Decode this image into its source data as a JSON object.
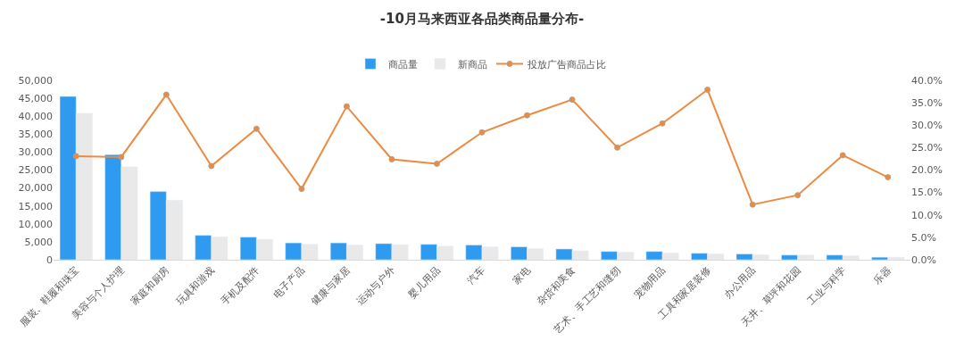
{
  "chart_data": {
    "type": "bar",
    "title": "-10月马来西亚各品类商品量分布-",
    "categories": [
      "服装、鞋履和珠宝",
      "美容与个人护理",
      "家庭和厨房",
      "玩具和游戏",
      "手机及配件",
      "电子产品",
      "健康与家居",
      "运动与户外",
      "婴儿用品",
      "汽车",
      "家电",
      "杂货和美食",
      "艺术、手工艺和缝纫",
      "宠物用品",
      "工具和家居装修",
      "办公用品",
      "天井、草坪和花园",
      "工业与科学",
      "乐器"
    ],
    "series": [
      {
        "name": "商品量",
        "color": "#2e9bf0",
        "values": [
          45500,
          29300,
          19000,
          6800,
          6300,
          4700,
          4700,
          4500,
          4300,
          4100,
          3600,
          3000,
          2300,
          2300,
          1800,
          1600,
          1300,
          1300,
          700
        ]
      },
      {
        "name": "新商品",
        "color": "#e9e9e9",
        "values": [
          40800,
          25900,
          16600,
          6400,
          5700,
          4300,
          4100,
          4200,
          3800,
          3600,
          3100,
          2500,
          2100,
          1900,
          1600,
          1400,
          1300,
          1100,
          700
        ]
      },
      {
        "name": "投放广告商品占比",
        "type": "line",
        "axis": "y2",
        "color": "#ed8a3f",
        "values": [
          23.1,
          22.9,
          36.8,
          20.9,
          29.2,
          15.8,
          34.2,
          22.4,
          21.4,
          28.4,
          32.2,
          35.7,
          25.0,
          30.4,
          37.9,
          12.3,
          14.4,
          23.3,
          18.4
        ]
      }
    ],
    "ylim": [
      0,
      50000
    ],
    "yticks": [
      {
        "value": 0,
        "label": "0"
      },
      {
        "value": 5000,
        "label": "5,000"
      },
      {
        "value": 10000,
        "label": "10,000"
      },
      {
        "value": 15000,
        "label": "15,000"
      },
      {
        "value": 20000,
        "label": "20,000"
      },
      {
        "value": 25000,
        "label": "25,000"
      },
      {
        "value": 30000,
        "label": "30,000"
      },
      {
        "value": 35000,
        "label": "35,000"
      },
      {
        "value": 40000,
        "label": "40,000"
      },
      {
        "value": 45000,
        "label": "45,000"
      },
      {
        "value": 50000,
        "label": "50,000"
      }
    ],
    "y2lim": [
      0,
      40
    ],
    "y2ticks": [
      {
        "value": 0,
        "label": "0.0%"
      },
      {
        "value": 5,
        "label": "5.0%"
      },
      {
        "value": 10,
        "label": "10.0%"
      },
      {
        "value": 15,
        "label": "15.0%"
      },
      {
        "value": 20,
        "label": "20.0%"
      },
      {
        "value": 25,
        "label": "25.0%"
      },
      {
        "value": 30,
        "label": "30.0%"
      },
      {
        "value": 35,
        "label": "35.0%"
      },
      {
        "value": 40,
        "label": "40.0%"
      }
    ],
    "legend": "top",
    "marker": "circle",
    "line_style": "solid"
  }
}
